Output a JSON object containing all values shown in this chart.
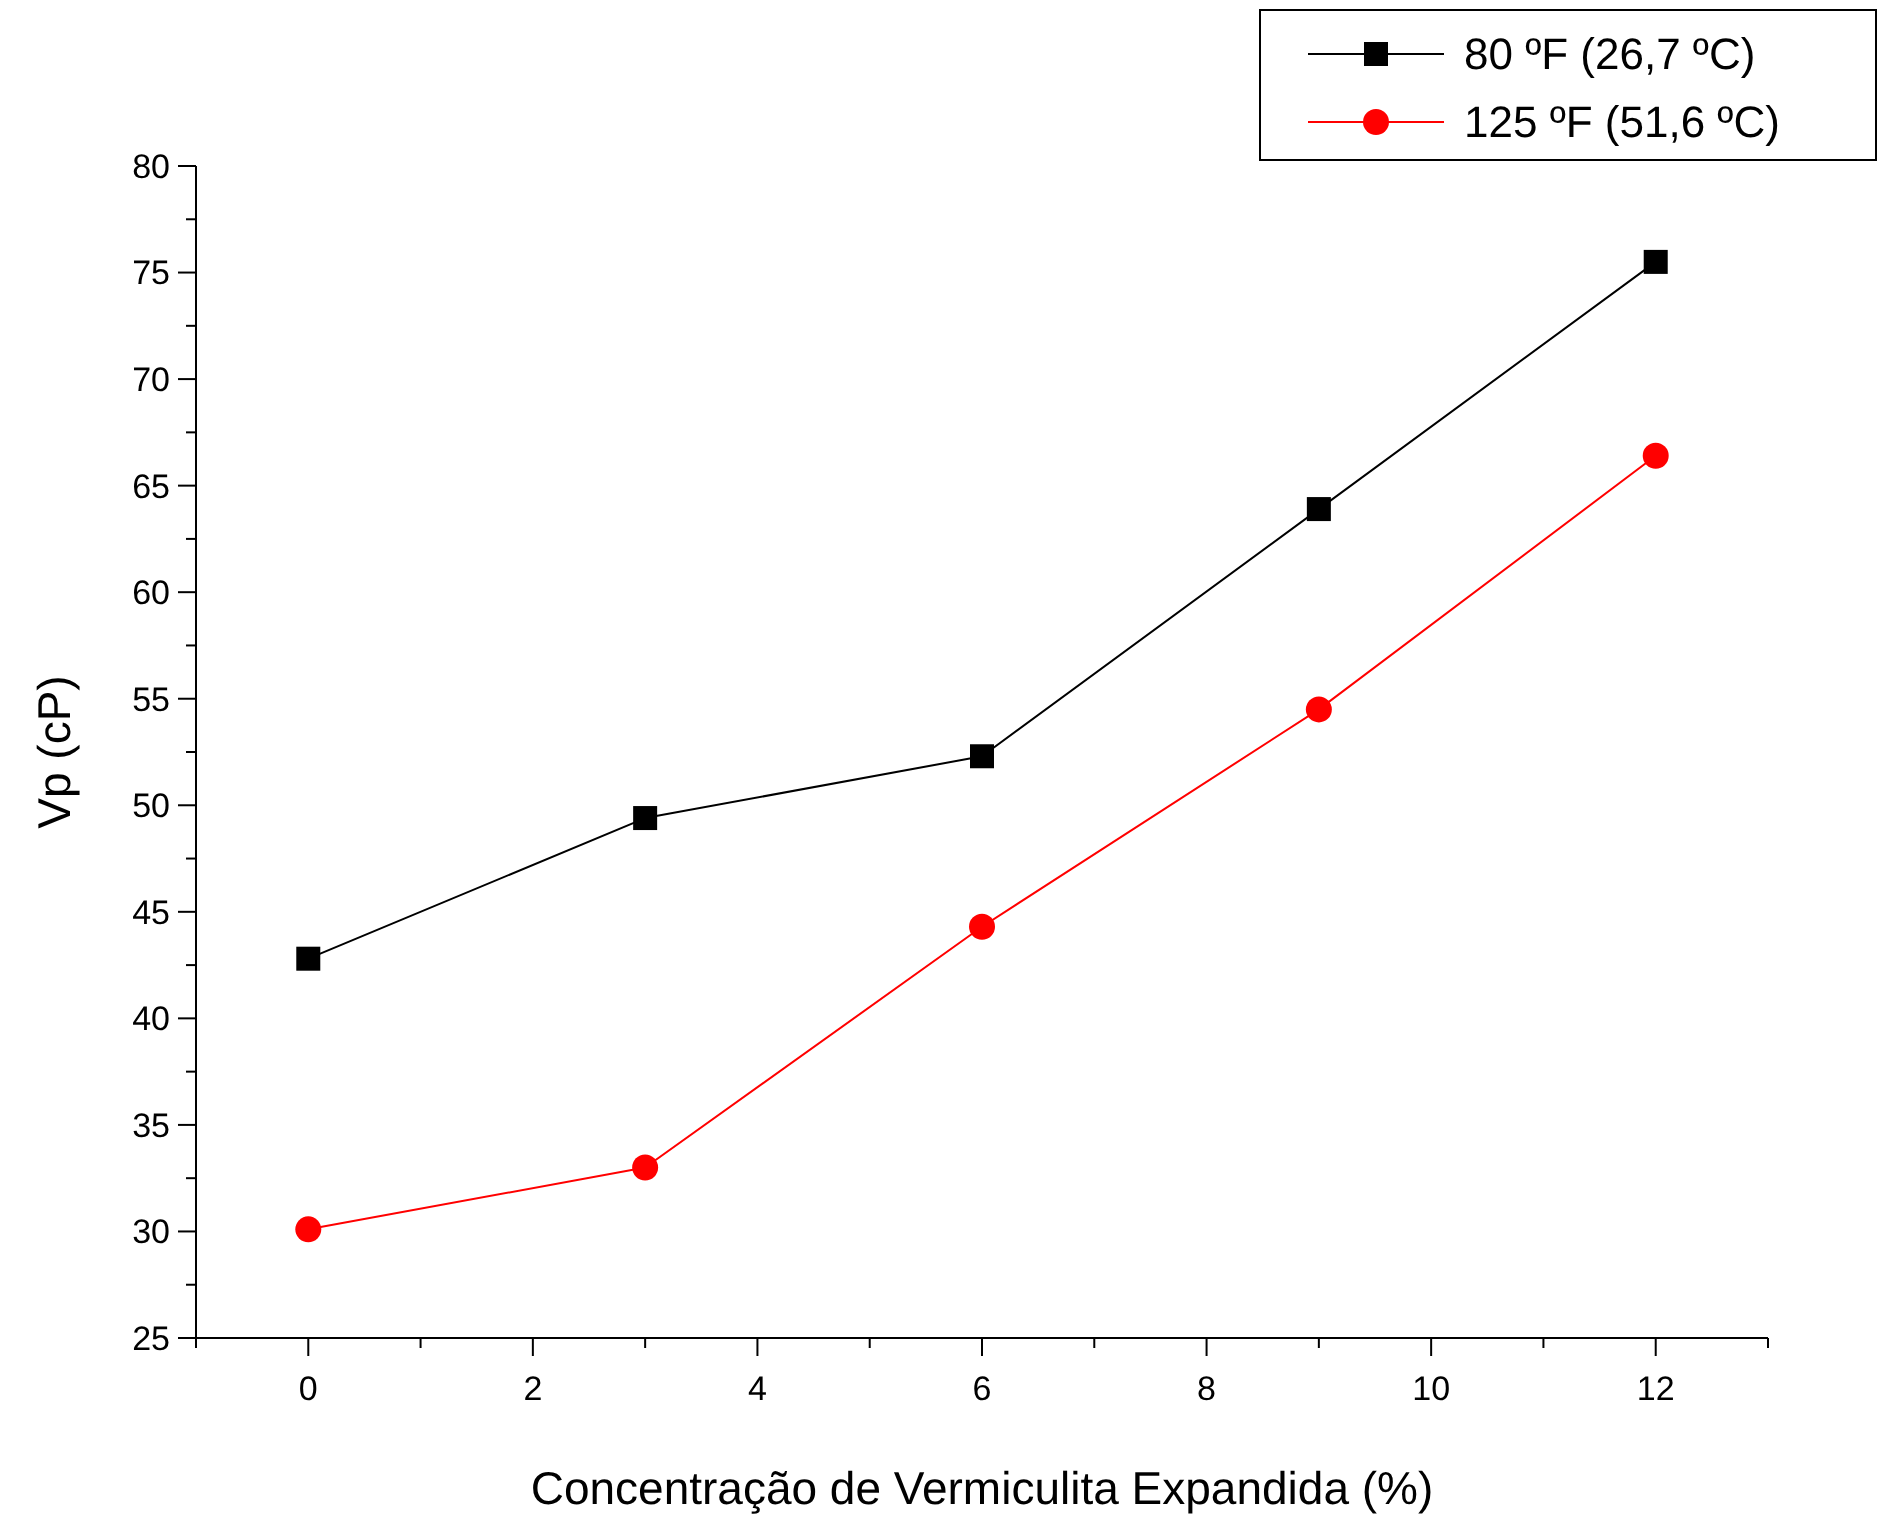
{
  "chart_data": {
    "type": "line",
    "xlabel": "Concentração de Vermiculita Expandida (%)",
    "ylabel": "Vp (cP)",
    "x": [
      0,
      3,
      6,
      9,
      12
    ],
    "series": [
      {
        "name": "80 ºF (26,7 ºC)",
        "color": "#000000",
        "marker": "square",
        "values": [
          42.8,
          49.4,
          52.3,
          63.9,
          75.5
        ]
      },
      {
        "name": "125 ºF (51,6 ºC)",
        "color": "#ff0000",
        "marker": "circle",
        "values": [
          30.1,
          33.0,
          44.3,
          54.5,
          66.4
        ]
      }
    ],
    "xlim": [
      -1,
      13
    ],
    "xticks": [
      {
        "value": -1,
        "label": null
      },
      0,
      {
        "value": 1,
        "label": null
      },
      2,
      {
        "value": 3,
        "label": null
      },
      4,
      {
        "value": 5,
        "label": null
      },
      6,
      {
        "value": 7,
        "label": null
      },
      8,
      {
        "value": 9,
        "label": null
      },
      10,
      {
        "value": 11,
        "label": null
      },
      12,
      {
        "value": 13,
        "label": null
      }
    ],
    "ylim": [
      25,
      80
    ],
    "yticks": [
      25,
      {
        "value": 27.5,
        "label": null
      },
      30,
      {
        "value": 32.5,
        "label": null
      },
      35,
      {
        "value": 37.5,
        "label": null
      },
      40,
      {
        "value": 42.5,
        "label": null
      },
      45,
      {
        "value": 47.5,
        "label": null
      },
      50,
      {
        "value": 52.5,
        "label": null
      },
      55,
      {
        "value": 57.5,
        "label": null
      },
      60,
      {
        "value": 62.5,
        "label": null
      },
      65,
      {
        "value": 67.5,
        "label": null
      },
      70,
      {
        "value": 72.5,
        "label": null
      },
      75,
      {
        "value": 77.5,
        "label": null
      },
      80
    ],
    "grid": false,
    "legend": "top right",
    "line_style": "solid"
  }
}
